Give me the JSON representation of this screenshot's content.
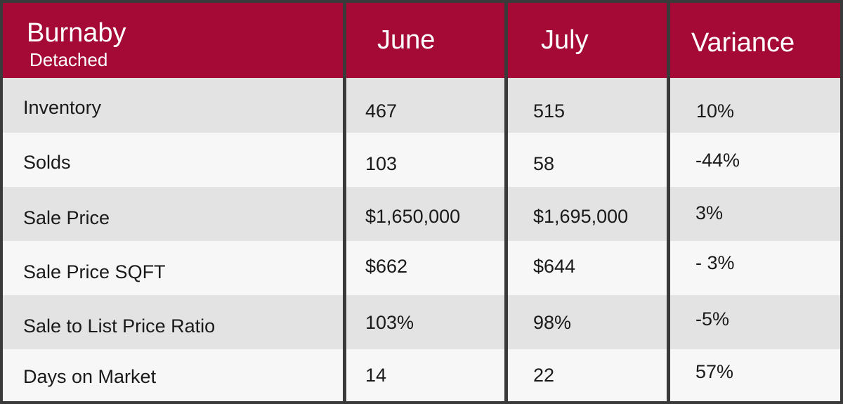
{
  "header": {
    "region": "Burnaby",
    "type": "Detached",
    "columns": [
      "June",
      "July",
      "Variance"
    ]
  },
  "rows": [
    {
      "label": "Inventory",
      "june": "467",
      "july": "515",
      "variance": "10%"
    },
    {
      "label": "Solds",
      "june": "103",
      "july": "58",
      "variance": "-44%"
    },
    {
      "label": "Sale Price",
      "june": "$1,650,000",
      "july": "$1,695,000",
      "variance": "3%"
    },
    {
      "label": "Sale Price SQFT",
      "june": "$662",
      "july": "$644",
      "variance": "- 3%"
    },
    {
      "label": "Sale to List Price Ratio",
      "june": "103%",
      "july": "98%",
      "variance": "-5%"
    },
    {
      "label": "Days on Market",
      "june": "14",
      "july": "22",
      "variance": "57%"
    }
  ],
  "colors": {
    "header_bg": "#a50a37",
    "row_even": "#e3e3e3",
    "row_odd": "#f7f7f7",
    "border": "#3a3a3a"
  }
}
